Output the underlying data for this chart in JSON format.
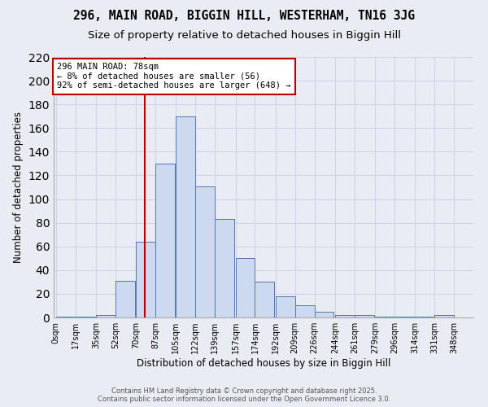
{
  "title1": "296, MAIN ROAD, BIGGIN HILL, WESTERHAM, TN16 3JG",
  "title2": "Size of property relative to detached houses in Biggin Hill",
  "xlabel": "Distribution of detached houses by size in Biggin Hill",
  "ylabel": "Number of detached properties",
  "bins": [
    0,
    17,
    35,
    52,
    70,
    87,
    105,
    122,
    139,
    157,
    174,
    192,
    209,
    226,
    244,
    261,
    279,
    296,
    314,
    331,
    348
  ],
  "counts": [
    1,
    1,
    2,
    31,
    64,
    130,
    170,
    111,
    83,
    50,
    30,
    18,
    10,
    5,
    2,
    2,
    1,
    1,
    1,
    2
  ],
  "bar_facecolor": "#ccd9ee",
  "bar_edgecolor": "#5578aa",
  "grid_color": "#d0d4e8",
  "background_color": "#eaecf4",
  "vline_x": 78,
  "vline_color": "#bb0000",
  "annotation_text": "296 MAIN ROAD: 78sqm\n← 8% of detached houses are smaller (56)\n92% of semi-detached houses are larger (648) →",
  "annotation_box_color": "#ffffff",
  "annotation_box_edgecolor": "#bb0000",
  "footer_text": "Contains HM Land Registry data © Crown copyright and database right 2025.\nContains public sector information licensed under the Open Government Licence 3.0.",
  "ylim": [
    0,
    220
  ],
  "xlim": [
    -2,
    365
  ],
  "yticks": [
    0,
    20,
    40,
    60,
    80,
    100,
    120,
    140,
    160,
    180,
    200,
    220
  ],
  "tick_labels": [
    "0sqm",
    "17sqm",
    "35sqm",
    "52sqm",
    "70sqm",
    "87sqm",
    "105sqm",
    "122sqm",
    "139sqm",
    "157sqm",
    "174sqm",
    "192sqm",
    "209sqm",
    "226sqm",
    "244sqm",
    "261sqm",
    "279sqm",
    "296sqm",
    "314sqm",
    "331sqm",
    "348sqm"
  ],
  "title1_fontsize": 10.5,
  "title2_fontsize": 9.5,
  "xlabel_fontsize": 8.5,
  "ylabel_fontsize": 8.5,
  "tick_fontsize": 7,
  "annotation_fontsize": 7.5,
  "footer_fontsize": 6
}
